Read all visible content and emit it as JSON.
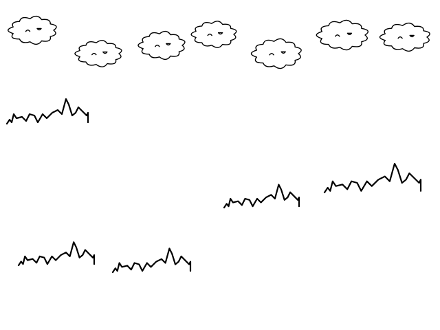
{
  "scene": {
    "background_color": "#ffffff",
    "ink_color": "#000000",
    "clouds": [
      {
        "kind": "cloud",
        "icon": "cloud-icon"
      },
      {
        "kind": "cloud",
        "icon": "cloud-icon"
      },
      {
        "kind": "cloud",
        "icon": "cloud-icon"
      },
      {
        "kind": "cloud",
        "icon": "cloud-icon"
      },
      {
        "kind": "cloud",
        "icon": "cloud-icon"
      },
      {
        "kind": "cloud",
        "icon": "cloud-icon"
      },
      {
        "kind": "cloud",
        "icon": "cloud-icon"
      }
    ],
    "grass_tufts": [
      {
        "kind": "grass",
        "icon": "grass-tuft-icon"
      },
      {
        "kind": "grass",
        "icon": "grass-tuft-icon"
      },
      {
        "kind": "grass",
        "icon": "grass-tuft-icon"
      },
      {
        "kind": "grass",
        "icon": "grass-tuft-icon"
      },
      {
        "kind": "grass",
        "icon": "grass-tuft-icon"
      }
    ]
  }
}
